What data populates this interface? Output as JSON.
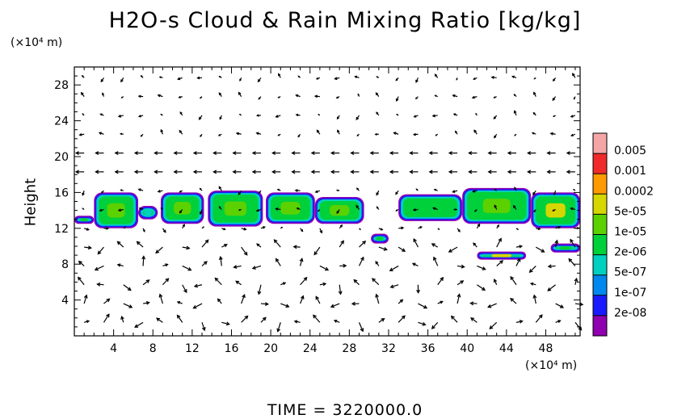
{
  "chart_data": {
    "type": "heatmap",
    "title": "H2O-s Cloud & Rain Mixing Ratio [kg/kg]",
    "ylabel": "Height",
    "xlabel": "",
    "x_scale_label": "(×10⁴ m)",
    "y_scale_label": "(×10⁴ m)",
    "xlim": [
      0,
      51.5
    ],
    "ylim": [
      0,
      30
    ],
    "x_ticks": [
      "4",
      "8",
      "12",
      "16",
      "20",
      "24",
      "28",
      "32",
      "36",
      "40",
      "44",
      "48"
    ],
    "y_ticks": [
      "4",
      "8",
      "12",
      "16",
      "20",
      "24",
      "28"
    ],
    "colorbar": {
      "labels": [
        "0.005",
        "0.001",
        "0.0002",
        "5e-05",
        "1e-05",
        "2e-06",
        "5e-07",
        "1e-07",
        "2e-08"
      ],
      "colors": [
        "#f4a6a6",
        "#f02a2a",
        "#ff9a00",
        "#d6d600",
        "#5cd100",
        "#00d03a",
        "#00d0c0",
        "#0088ee",
        "#1a1aff",
        "#9000b0"
      ]
    },
    "overlay": "wind vectors",
    "cloud_regions": [
      {
        "x0": 0.0,
        "x1": 2.0,
        "y0": 12.5,
        "y1": 13.4,
        "level": "1e-05"
      },
      {
        "x0": 2.0,
        "x1": 6.5,
        "y0": 12.0,
        "y1": 16.0,
        "level": "5e-05"
      },
      {
        "x0": 6.5,
        "x1": 8.5,
        "y0": 13.0,
        "y1": 14.5,
        "level": "2e-06"
      },
      {
        "x0": 8.8,
        "x1": 13.2,
        "y0": 12.5,
        "y1": 16.0,
        "level": "5e-05"
      },
      {
        "x0": 13.6,
        "x1": 19.2,
        "y0": 12.2,
        "y1": 16.2,
        "level": "5e-05"
      },
      {
        "x0": 19.5,
        "x1": 24.5,
        "y0": 12.5,
        "y1": 16.0,
        "level": "5e-05"
      },
      {
        "x0": 24.5,
        "x1": 29.5,
        "y0": 12.5,
        "y1": 15.5,
        "level": "5e-05"
      },
      {
        "x0": 30.2,
        "x1": 32.0,
        "y0": 10.3,
        "y1": 11.4,
        "level": "1e-05"
      },
      {
        "x0": 33.0,
        "x1": 39.5,
        "y0": 12.8,
        "y1": 15.8,
        "level": "1e-05"
      },
      {
        "x0": 39.5,
        "x1": 46.5,
        "y0": 12.5,
        "y1": 16.5,
        "level": "5e-05"
      },
      {
        "x0": 46.5,
        "x1": 51.5,
        "y0": 12.0,
        "y1": 16.0,
        "level": "0.0002"
      },
      {
        "x0": 41.0,
        "x1": 46.0,
        "y0": 8.5,
        "y1": 9.4,
        "level": "0.0002"
      },
      {
        "x0": 48.5,
        "x1": 51.5,
        "y0": 9.3,
        "y1": 10.3,
        "level": "1e-05"
      }
    ]
  },
  "footer": {
    "time_label": "TIME = 3220000.0"
  }
}
